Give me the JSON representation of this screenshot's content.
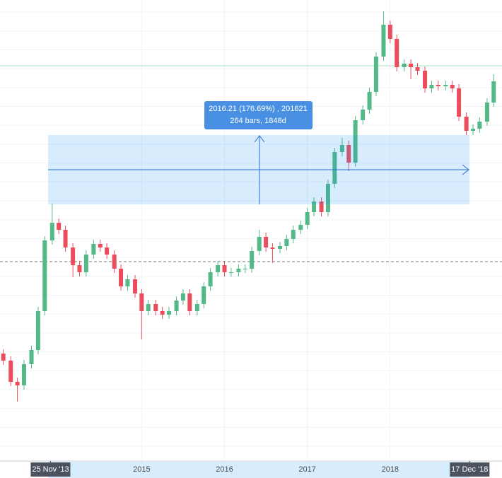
{
  "chart_data": {
    "type": "candlestick",
    "measure": {
      "line1": "2016.21 (176.69%) , 201621",
      "line2": "264 bars, 1848d"
    },
    "up_color": "#53b987",
    "down_color": "#eb4d5c",
    "xlim": [
      2013.29,
      2019.35
    ],
    "ylim": [
      0,
      652
    ],
    "xticks": [
      {
        "value": 2013.9,
        "label": "25 Nov '13"
      },
      2015,
      2016,
      2017,
      2018,
      {
        "value": 2018.96,
        "label": "17 Dec '18"
      }
    ],
    "x": [
      2013.33,
      2013.42,
      2013.5,
      2013.58,
      2013.67,
      2013.75,
      2013.83,
      2013.92,
      2014,
      2014.08,
      2014.17,
      2014.25,
      2014.33,
      2014.42,
      2014.5,
      2014.58,
      2014.67,
      2014.75,
      2014.83,
      2014.92,
      2015,
      2015.08,
      2015.17,
      2015.25,
      2015.33,
      2015.42,
      2015.5,
      2015.58,
      2015.67,
      2015.75,
      2015.83,
      2015.92,
      2016,
      2016.08,
      2016.17,
      2016.25,
      2016.33,
      2016.42,
      2016.5,
      2016.58,
      2016.67,
      2016.75,
      2016.83,
      2016.92,
      2017,
      2017.08,
      2017.17,
      2017.25,
      2017.33,
      2017.42,
      2017.5,
      2017.58,
      2017.67,
      2017.75,
      2017.83,
      2017.92,
      2018,
      2018.08,
      2018.17,
      2018.25,
      2018.33,
      2018.42,
      2018.5,
      2018.58,
      2018.67,
      2018.75,
      2018.83,
      2018.92,
      2019,
      2019.08,
      2019.17,
      2019.25
    ],
    "open": [
      152,
      142,
      112,
      107,
      137,
      157,
      212,
      312,
      337,
      327,
      302,
      277,
      267,
      292,
      307,
      302,
      292,
      272,
      247,
      257,
      237,
      212,
      222,
      212,
      207,
      212,
      227,
      237,
      212,
      222,
      247,
      267,
      277,
      267,
      267,
      272,
      272,
      297,
      317,
      302,
      300,
      304,
      314,
      327,
      334,
      352,
      367,
      352,
      392,
      437,
      447,
      422,
      482,
      497,
      522,
      572,
      617,
      597,
      557,
      562,
      557,
      552,
      527,
      532,
      530,
      532,
      527,
      487,
      467,
      470,
      480,
      507
    ],
    "high": [
      158,
      148,
      118,
      143,
      163,
      218,
      318,
      364,
      343,
      333,
      308,
      283,
      298,
      313,
      313,
      308,
      298,
      278,
      263,
      263,
      243,
      228,
      228,
      218,
      218,
      233,
      243,
      243,
      228,
      253,
      273,
      283,
      283,
      273,
      278,
      278,
      303,
      327,
      323,
      308,
      310,
      320,
      333,
      340,
      358,
      373,
      373,
      398,
      443,
      457,
      453,
      488,
      503,
      528,
      578,
      636,
      623,
      603,
      568,
      568,
      563,
      558,
      538,
      538,
      538,
      538,
      533,
      493,
      476,
      486,
      513,
      547
    ],
    "low": [
      136,
      106,
      84,
      101,
      131,
      151,
      206,
      306,
      321,
      296,
      260,
      261,
      261,
      286,
      296,
      286,
      266,
      241,
      241,
      231,
      172,
      206,
      206,
      201,
      201,
      206,
      221,
      206,
      206,
      216,
      241,
      261,
      261,
      261,
      261,
      266,
      266,
      291,
      296,
      280,
      294,
      298,
      308,
      321,
      328,
      346,
      346,
      346,
      386,
      431,
      410,
      416,
      476,
      491,
      516,
      566,
      591,
      551,
      551,
      540,
      546,
      521,
      521,
      524,
      524,
      521,
      481,
      461,
      461,
      464,
      474,
      501
    ],
    "close": [
      142,
      112,
      107,
      137,
      157,
      212,
      312,
      337,
      327,
      302,
      277,
      267,
      292,
      307,
      302,
      292,
      272,
      247,
      257,
      237,
      212,
      222,
      212,
      207,
      212,
      227,
      237,
      212,
      222,
      247,
      267,
      277,
      267,
      267,
      272,
      272,
      297,
      317,
      302,
      300,
      304,
      314,
      327,
      334,
      352,
      367,
      352,
      392,
      437,
      447,
      422,
      482,
      497,
      522,
      572,
      617,
      597,
      557,
      562,
      557,
      552,
      527,
      532,
      530,
      532,
      527,
      487,
      467,
      470,
      480,
      507,
      537
    ]
  }
}
